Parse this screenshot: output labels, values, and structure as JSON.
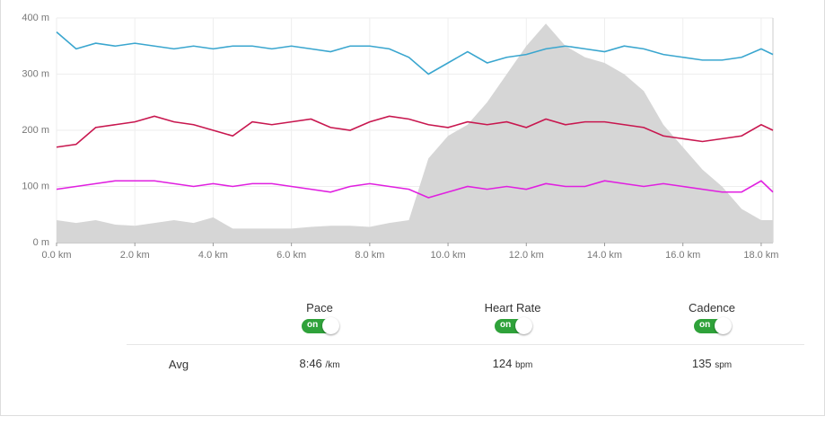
{
  "chart_data": {
    "type": "line",
    "x": [
      0,
      0.5,
      1,
      1.5,
      2,
      2.5,
      3,
      3.5,
      4,
      4.5,
      5,
      5.5,
      6,
      6.5,
      7,
      7.5,
      8,
      8.5,
      9,
      9.5,
      10,
      10.5,
      11,
      11.5,
      12,
      12.5,
      13,
      13.5,
      14,
      14.5,
      15,
      15.5,
      16,
      16.5,
      17,
      17.5,
      18,
      18.3
    ],
    "series": [
      {
        "color": "#d6d6d6",
        "area": true,
        "values": [
          40,
          35,
          40,
          32,
          30,
          35,
          40,
          35,
          45,
          25,
          25,
          25,
          25,
          28,
          30,
          30,
          28,
          35,
          40,
          150,
          190,
          210,
          250,
          300,
          350,
          390,
          350,
          330,
          320,
          300,
          270,
          210,
          170,
          130,
          100,
          60,
          40,
          40
        ]
      },
      {
        "name": "Pace",
        "color": "#3aa6cf",
        "values": [
          375,
          345,
          355,
          350,
          355,
          350,
          345,
          350,
          345,
          350,
          350,
          345,
          350,
          345,
          340,
          350,
          350,
          345,
          330,
          300,
          320,
          340,
          320,
          330,
          335,
          345,
          350,
          345,
          340,
          350,
          345,
          335,
          330,
          325,
          325,
          330,
          345,
          335
        ]
      },
      {
        "name": "Heart Rate",
        "color": "#c8174f",
        "values": [
          170,
          175,
          205,
          210,
          215,
          225,
          215,
          210,
          200,
          190,
          215,
          210,
          215,
          220,
          205,
          200,
          215,
          225,
          220,
          210,
          205,
          215,
          210,
          215,
          205,
          220,
          210,
          215,
          215,
          210,
          205,
          190,
          185,
          180,
          185,
          190,
          210,
          200
        ]
      },
      {
        "name": "Cadence",
        "color": "#e020e0",
        "values": [
          95,
          100,
          105,
          110,
          110,
          110,
          105,
          100,
          105,
          100,
          105,
          105,
          100,
          95,
          90,
          100,
          105,
          100,
          95,
          80,
          90,
          100,
          95,
          100,
          95,
          105,
          100,
          100,
          110,
          105,
          100,
          105,
          100,
          95,
          90,
          90,
          110,
          90
        ]
      }
    ],
    "xlim": [
      0,
      18.3
    ],
    "xticks": [
      {
        "value": 0,
        "label": "0.0 km"
      },
      {
        "value": 2,
        "label": "2.0 km"
      },
      {
        "value": 4,
        "label": "4.0 km"
      },
      {
        "value": 6,
        "label": "6.0 km"
      },
      {
        "value": 8,
        "label": "8.0 km"
      },
      {
        "value": 10,
        "label": "10.0 km"
      },
      {
        "value": 12,
        "label": "12.0 km"
      },
      {
        "value": 14,
        "label": "14.0 km"
      },
      {
        "value": 16,
        "label": "16.0 km"
      },
      {
        "value": 18,
        "label": "18.0 km"
      }
    ],
    "ylim": [
      0,
      400
    ],
    "yticks": [
      {
        "value": 0,
        "label": "0 m"
      },
      {
        "value": 100,
        "label": "100 m"
      },
      {
        "value": 200,
        "label": "200 m"
      },
      {
        "value": 300,
        "label": "300 m"
      },
      {
        "value": 400,
        "label": "400 m"
      }
    ],
    "grid": true
  },
  "controls": {
    "toggles": [
      {
        "state": "on"
      },
      {
        "state": "on"
      },
      {
        "state": "on"
      }
    ]
  },
  "summary": {
    "label": "Avg",
    "items": [
      {
        "value": "8:46",
        "unit": "/km"
      },
      {
        "value": "124",
        "unit": "bpm"
      },
      {
        "value": "135",
        "unit": "spm"
      }
    ]
  }
}
